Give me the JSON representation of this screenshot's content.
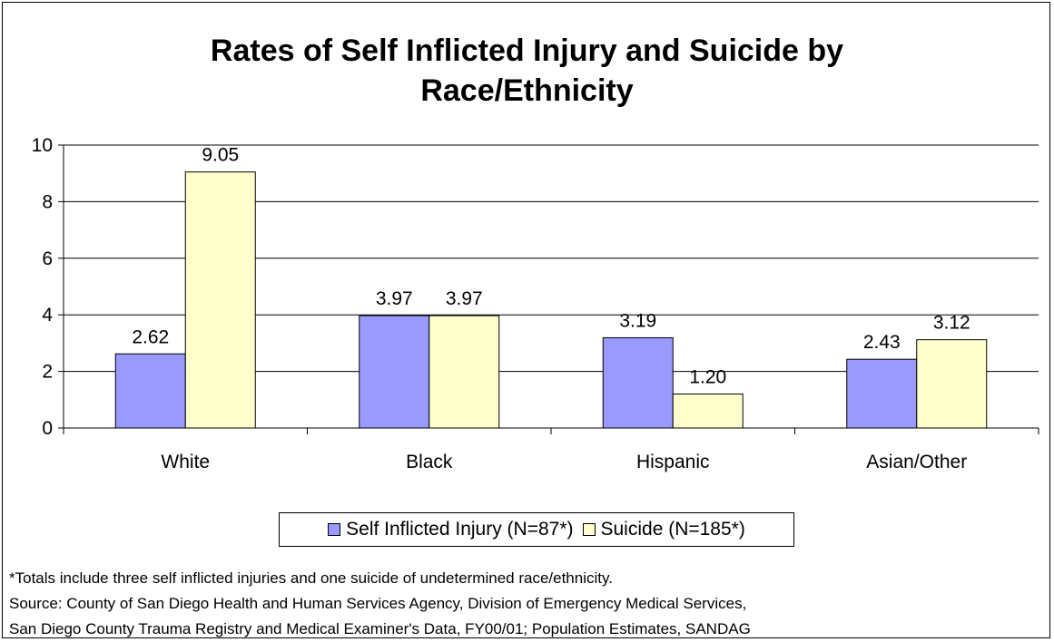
{
  "chart_data": {
    "type": "bar",
    "title_line1": "Rates of Self Inflicted Injury and Suicide by",
    "title_line2": "Race/Ethnicity",
    "categories": [
      "White",
      "Black",
      "Hispanic",
      "Asian/Other"
    ],
    "series": [
      {
        "name": "Self Inflicted Injury (N=87*)",
        "values": [
          2.62,
          3.97,
          3.19,
          2.43
        ],
        "labels": [
          "2.62",
          "3.97",
          "3.19",
          "2.43"
        ],
        "color": "#9999ff"
      },
      {
        "name": "Suicide (N=185*)",
        "values": [
          9.05,
          3.97,
          1.2,
          3.12
        ],
        "labels": [
          "9.05",
          "3.97",
          "1.20",
          "3.12"
        ],
        "color": "#ffffcc"
      }
    ],
    "ylim": [
      0,
      10
    ],
    "yticks": [
      0,
      2,
      4,
      6,
      8,
      10
    ],
    "grid": true,
    "legend_position": "bottom"
  },
  "notes": {
    "footnote": "*Totals include three self inflicted injuries and one suicide of undetermined race/ethnicity.",
    "source_line1": "Source: County of San Diego Health and Human Services Agency, Division of Emergency Medical Services,",
    "source_line2": "San Diego County Trauma Registry and Medical Examiner's Data, FY00/01; Population Estimates, SANDAG"
  }
}
